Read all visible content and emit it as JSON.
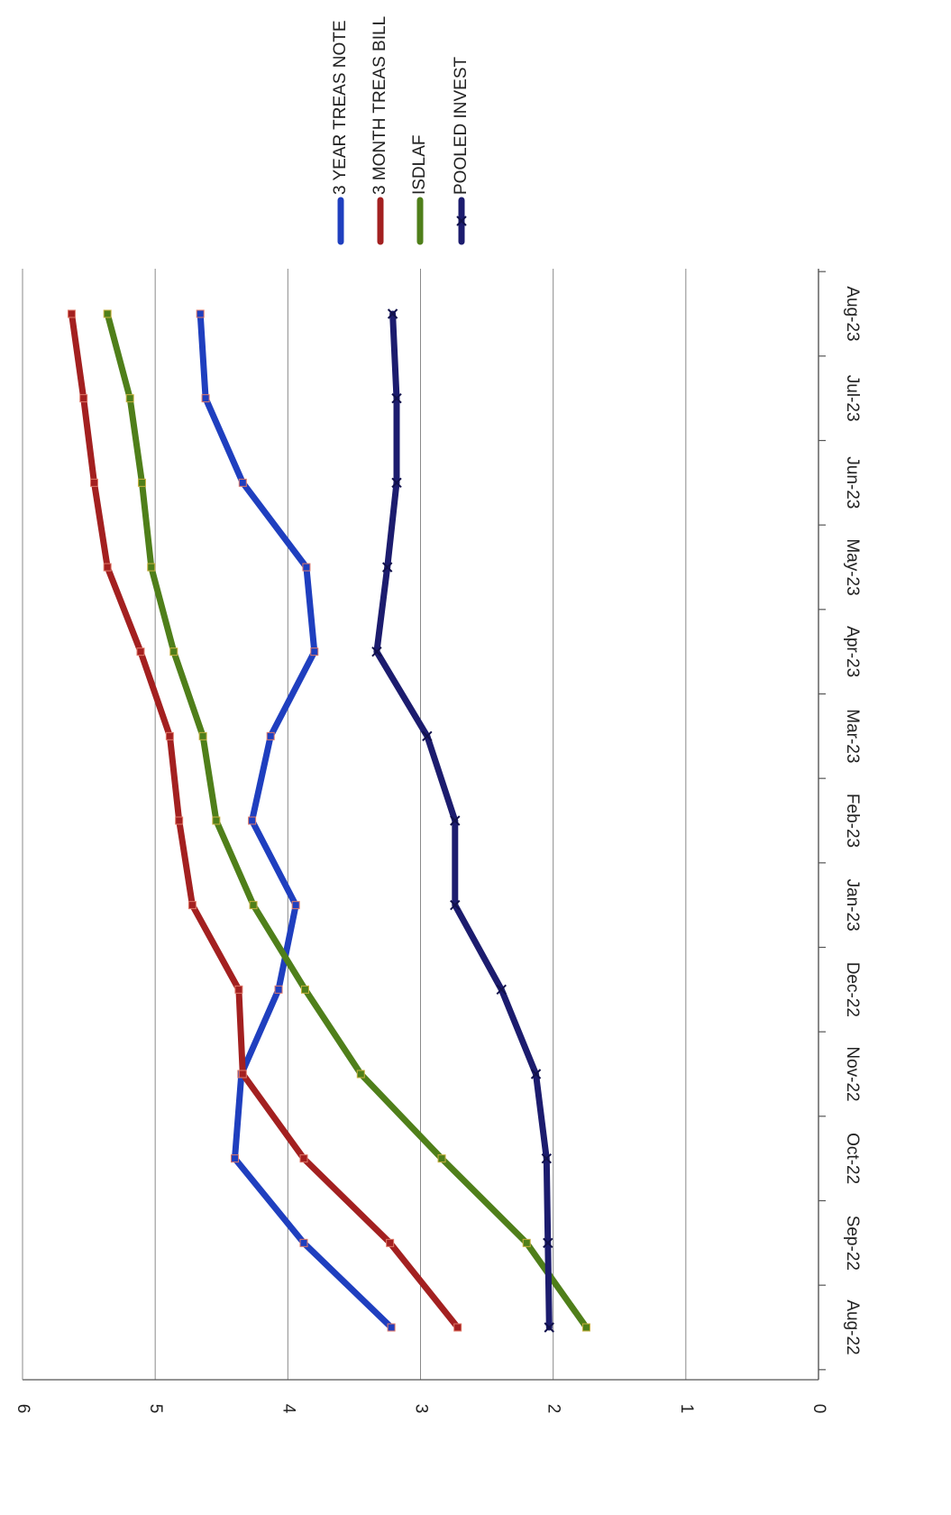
{
  "chart_data": {
    "type": "line",
    "orientation": "rotated-90-clockwise",
    "title": "",
    "xlabel": "",
    "ylabel": "",
    "categories": [
      "Aug-22",
      "Sep-22",
      "Oct-22",
      "Nov-22",
      "Dec-22",
      "Jan-23",
      "Feb-23",
      "Mar-23",
      "Apr-23",
      "May-23",
      "Jun-23",
      "Jul-23",
      "Aug-23"
    ],
    "ylim": [
      0,
      6
    ],
    "yticks": [
      "0",
      "1",
      "2",
      "3",
      "4",
      "5",
      "6"
    ],
    "grid": true,
    "legend_placement": "top-right",
    "series": [
      {
        "name": "3 YEAR TREAS NOTE",
        "color": "#1f3fbf",
        "values": [
          3.22,
          3.88,
          4.4,
          4.35,
          4.07,
          3.94,
          4.27,
          4.13,
          3.8,
          3.86,
          4.34,
          4.62,
          4.66
        ]
      },
      {
        "name": "3 MONTH TREAS BILL",
        "color": "#a32020",
        "values": [
          2.72,
          3.23,
          3.88,
          4.34,
          4.37,
          4.72,
          4.82,
          4.89,
          5.11,
          5.36,
          5.46,
          5.54,
          5.63
        ]
      },
      {
        "name": "ISDLAF",
        "color": "#4f7f1a",
        "values": [
          1.75,
          2.2,
          2.84,
          3.45,
          3.87,
          4.26,
          4.54,
          4.64,
          4.86,
          5.03,
          5.1,
          5.19,
          5.36
        ]
      },
      {
        "name": "POOLED INVEST",
        "color": "#1c1c6e",
        "values": [
          2.03,
          2.04,
          2.05,
          2.13,
          2.39,
          2.74,
          2.74,
          2.95,
          3.33,
          3.25,
          3.18,
          3.18,
          3.21
        ]
      }
    ]
  }
}
